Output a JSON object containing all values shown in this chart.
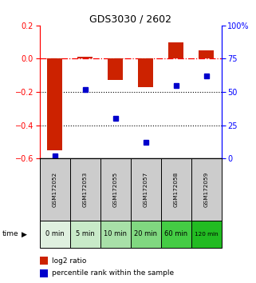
{
  "title": "GDS3030 / 2602",
  "samples": [
    "GSM172052",
    "GSM172053",
    "GSM172055",
    "GSM172057",
    "GSM172058",
    "GSM172059"
  ],
  "time_labels": [
    "0 min",
    "5 min",
    "10 min",
    "20 min",
    "60 min",
    "120 min"
  ],
  "log2_ratio": [
    -0.55,
    0.01,
    -0.13,
    -0.17,
    0.1,
    0.05
  ],
  "percentile_rank": [
    2,
    52,
    30,
    12,
    55,
    62
  ],
  "bar_color": "#cc2200",
  "dot_color": "#0000cc",
  "left_ylim": [
    -0.6,
    0.2
  ],
  "right_ylim": [
    0,
    100
  ],
  "left_yticks": [
    -0.6,
    -0.4,
    -0.2,
    0.0,
    0.2
  ],
  "right_yticks": [
    0,
    25,
    50,
    75,
    100
  ],
  "right_yticklabels": [
    "0",
    "25",
    "50",
    "75",
    "100%"
  ],
  "dotted_lines": [
    -0.2,
    -0.4
  ],
  "dash_dot_line": 0.0,
  "time_colors": [
    "#dff0df",
    "#c8eac8",
    "#a8e0a8",
    "#80d880",
    "#44cc44",
    "#22bb22"
  ],
  "gsm_bg": "#cccccc",
  "legend_log2": "log2 ratio",
  "legend_pct": "percentile rank within the sample",
  "bar_width": 0.5
}
